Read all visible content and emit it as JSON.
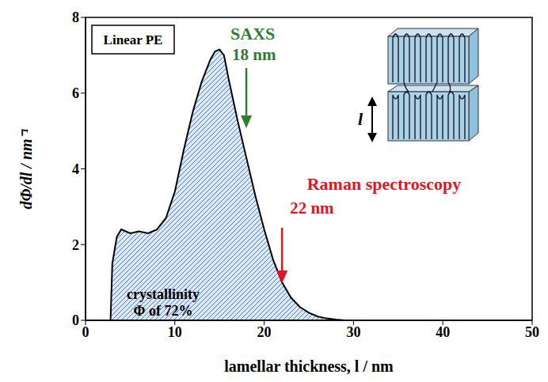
{
  "chart_data": {
    "type": "area",
    "x_label": "lamellar thickness, l / nm",
    "y_label": "dΦ/dl / nm⁻¹",
    "x": [
      2.8,
      3,
      3.5,
      4,
      4.5,
      5,
      6,
      7,
      8,
      9,
      10,
      11,
      12,
      13,
      14,
      14.5,
      15,
      15.5,
      16,
      17,
      18,
      19,
      20,
      21,
      22,
      23,
      24,
      25,
      26,
      27,
      28,
      29
    ],
    "values": [
      0,
      1.5,
      2.2,
      2.4,
      2.35,
      2.3,
      2.35,
      2.3,
      2.4,
      2.7,
      3.4,
      4.5,
      5.5,
      6.3,
      6.9,
      7.1,
      7.15,
      7.0,
      6.4,
      5.3,
      4.3,
      3.3,
      2.4,
      1.6,
      1.0,
      0.6,
      0.35,
      0.2,
      0.1,
      0.05,
      0.02,
      0
    ],
    "color": "#4a7cc0",
    "xlim": [
      0,
      50
    ],
    "xticks": [
      0,
      10,
      20,
      30,
      40,
      50
    ],
    "ylim": [
      0,
      8
    ],
    "yticks": [
      0,
      2,
      4,
      6,
      8
    ],
    "grid": false,
    "annotations": [
      {
        "text": "Linear PE"
      },
      {
        "text": "SAXS",
        "value_text": "18 nm",
        "x": 18,
        "color": "#2e7d32"
      },
      {
        "text": "Raman spectroscopy",
        "value_text": "22 nm",
        "x": 22,
        "color": "#e8141b"
      },
      {
        "lines": [
          "crystallinity",
          "Φ of 72%"
        ]
      }
    ],
    "inset_label": "l"
  }
}
